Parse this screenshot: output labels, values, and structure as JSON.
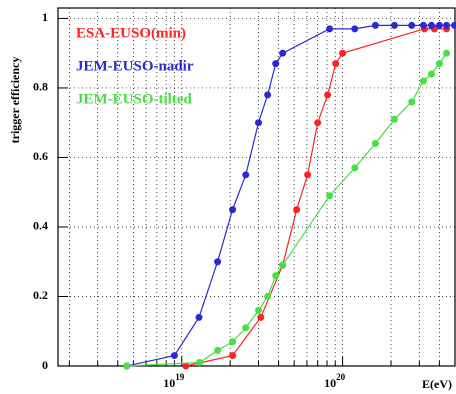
{
  "chart_data": {
    "type": "line",
    "ylabel": "trigger efficiency",
    "xlabel": "E(eV)",
    "xscale": "log",
    "xlim": [
      1.7e+18,
      5e+20
    ],
    "ylim": [
      0,
      1.03
    ],
    "xticks": [
      {
        "value": 1e+19,
        "label": "10",
        "exponent": "19"
      },
      {
        "value": 1e+20,
        "label": "10",
        "exponent": "20"
      }
    ],
    "xminor": [
      2e+18,
      3e+18,
      4e+18,
      5e+18,
      6e+18,
      7e+18,
      8e+18,
      9e+18,
      2e+19,
      3e+19,
      4e+19,
      5e+19,
      6e+19,
      7e+19,
      8e+19,
      9e+19,
      2e+20,
      3e+20,
      4e+20
    ],
    "yticks": [
      0,
      0.2,
      0.4,
      0.6,
      0.8,
      1
    ],
    "grid": true,
    "series": [
      {
        "name": "ESA-EUSO(min)",
        "color": "#ff2222",
        "x": [
          1.06e+19,
          2.07e+19,
          3.1e+19,
          4.24e+19,
          5.18e+19,
          6.06e+19,
          7e+19,
          8.07e+19,
          9.06e+19,
          1e+20,
          3.23e+20,
          3.72e+20,
          4.43e+20
        ],
        "values": [
          0,
          0.03,
          0.14,
          0.29,
          0.45,
          0.55,
          0.7,
          0.78,
          0.87,
          0.9,
          0.97,
          0.97,
          0.97
        ]
      },
      {
        "name": "JEM-EUSO-nadir",
        "color": "#2a2ad0",
        "x": [
          4.55e+18,
          9e+18,
          1.28e+19,
          1.67e+19,
          2.07e+19,
          2.5e+19,
          3e+19,
          3.42e+19,
          3.84e+19,
          4.24e+19,
          8.3e+19,
          1.19e+20,
          1.6e+20,
          2.1e+20,
          2.69e+20,
          3.18e+20,
          3.57e+20,
          4e+20,
          4.43e+20,
          4.97e+20
        ],
        "values": [
          0,
          0.03,
          0.14,
          0.3,
          0.45,
          0.55,
          0.7,
          0.78,
          0.87,
          0.9,
          0.97,
          0.97,
          0.98,
          0.98,
          0.98,
          0.98,
          0.98,
          0.98,
          0.98,
          0.98
        ]
      },
      {
        "name": "JEM-EUSO-tilted",
        "color": "#44e044",
        "x": [
          4.55e+18,
          1.29e+19,
          1.67e+19,
          2.07e+19,
          2.5e+19,
          3e+19,
          3.42e+19,
          3.84e+19,
          4.24e+19,
          8.3e+19,
          1.19e+20,
          1.6e+20,
          2.1e+20,
          2.69e+20,
          3.18e+20,
          3.57e+20,
          4e+20,
          4.43e+20
        ],
        "values": [
          0,
          0.01,
          0.045,
          0.07,
          0.11,
          0.16,
          0.2,
          0.26,
          0.29,
          0.49,
          0.57,
          0.64,
          0.71,
          0.76,
          0.82,
          0.84,
          0.87,
          0.9
        ]
      }
    ]
  }
}
